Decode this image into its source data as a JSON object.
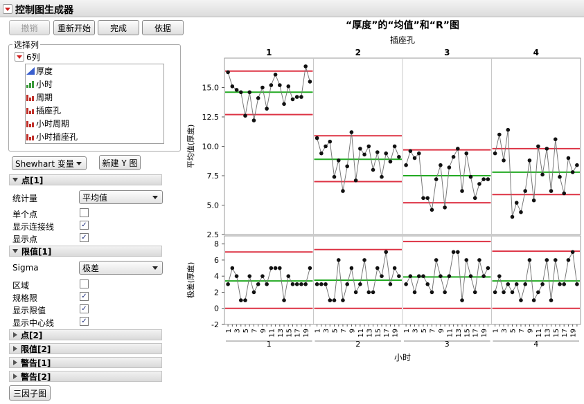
{
  "window": {
    "title": "控制图生成器"
  },
  "buttons": {
    "undo": "撤销",
    "restart": "重新开始",
    "done": "完成",
    "by": "依据",
    "new_y": "新建 Y 图",
    "three_way": "三因子图"
  },
  "select_columns": {
    "group_label": "选择列",
    "count_label": "6列",
    "items": [
      {
        "label": "厚度",
        "icon": "continuous-icon"
      },
      {
        "label": "小时",
        "icon": "ordinal-icon"
      },
      {
        "label": "周期",
        "icon": "nominal-icon"
      },
      {
        "label": "插座孔",
        "icon": "nominal-icon"
      },
      {
        "label": "小时周期",
        "icon": "nominal-icon"
      },
      {
        "label": "小时插座孔",
        "icon": "nominal-icon"
      }
    ]
  },
  "chart_type_combo": "Shewhart 变量",
  "points1": {
    "header": "点[1]",
    "statistic_label": "统计量",
    "statistic_value": "平均值",
    "individual_points": {
      "label": "单个点",
      "checked": false
    },
    "connect_line": {
      "label": "显示连接线",
      "checked": true
    },
    "show_points": {
      "label": "显示点",
      "checked": true
    }
  },
  "limits1": {
    "header": "限值[1]",
    "sigma_label": "Sigma",
    "sigma_value": "极差",
    "zones": {
      "label": "区域",
      "checked": false
    },
    "spec_limits": {
      "label": "规格限",
      "checked": true
    },
    "show_limits": {
      "label": "显示限值",
      "checked": true
    },
    "show_center": {
      "label": "显示中心线",
      "checked": true
    }
  },
  "collapsed_sections": [
    "点[2]",
    "限值[2]",
    "警告[1]",
    "警告[2]"
  ],
  "colors": {
    "center_line": "#22aa22",
    "limit_line": "#dd3344",
    "points": "#111111",
    "connector": "#777777"
  },
  "chart_data": {
    "type": "line",
    "title": "“厚度”的“均值”和“R”图",
    "group_label": "插座孔",
    "groups": [
      "1",
      "2",
      "3",
      "4"
    ],
    "xlabel": "小时",
    "x_ticks": [
      "1",
      "3",
      "5",
      "7",
      "9",
      "11",
      "13",
      "15",
      "17",
      "19"
    ],
    "mean_chart": {
      "ylabel": "平均值(厚度)",
      "ylim": [
        2.5,
        17.5
      ],
      "yticks": [
        "2.5",
        "5.0",
        "7.5",
        "10.0",
        "12.5",
        "15.0"
      ],
      "series": [
        {
          "group": "1",
          "center": 14.6,
          "ucl": 16.4,
          "lcl": 12.7,
          "values": [
            16.3,
            15.1,
            14.8,
            14.6,
            12.6,
            14.6,
            12.2,
            14.1,
            15.0,
            13.2,
            15.2,
            16.1,
            15.2,
            13.6,
            15.1,
            14.0,
            14.2,
            14.2,
            16.8,
            15.5
          ]
        },
        {
          "group": "2",
          "center": 8.9,
          "ucl": 10.9,
          "lcl": 7.0,
          "values": [
            10.7,
            9.4,
            10.0,
            10.4,
            7.4,
            8.8,
            6.2,
            8.3,
            11.2,
            7.1,
            9.8,
            9.3,
            10.0,
            8.0,
            9.5,
            7.4,
            9.4,
            8.7,
            10.0,
            9.1
          ]
        },
        {
          "group": "3",
          "center": 7.5,
          "ucl": 9.7,
          "lcl": 5.2,
          "values": [
            8.4,
            9.6,
            9.0,
            9.4,
            5.6,
            5.6,
            4.6,
            7.2,
            8.4,
            4.8,
            8.2,
            9.1,
            9.8,
            6.2,
            9.4,
            7.4,
            5.6,
            6.8,
            7.2,
            7.2
          ]
        },
        {
          "group": "4",
          "center": 7.8,
          "ucl": 9.8,
          "lcl": 5.9,
          "values": [
            9.4,
            11.0,
            8.8,
            11.4,
            4.0,
            5.2,
            4.4,
            6.2,
            8.8,
            5.4,
            10.0,
            7.6,
            9.8,
            6.2,
            10.6,
            7.4,
            6.0,
            9.0,
            7.8,
            8.4
          ]
        }
      ]
    },
    "range_chart": {
      "ylabel": "极差(厚度)",
      "ylim": [
        -2,
        9
      ],
      "yticks": [
        "-2",
        "0",
        "2",
        "4",
        "6",
        "8"
      ],
      "series": [
        {
          "group": "1",
          "center": 3.4,
          "ucl": 7.0,
          "lcl": 0,
          "values": [
            3,
            5,
            4,
            1,
            1,
            4,
            2,
            3,
            4,
            3,
            5,
            5,
            5,
            1,
            4,
            3,
            3,
            3,
            3,
            5
          ]
        },
        {
          "group": "2",
          "center": 3.5,
          "ucl": 7.3,
          "lcl": 0,
          "values": [
            3,
            3,
            3,
            1,
            1,
            6,
            1,
            3,
            5,
            2,
            3,
            6,
            2,
            2,
            5,
            4,
            7,
            3,
            5,
            4
          ]
        },
        {
          "group": "3",
          "center": 3.9,
          "ucl": 8.3,
          "lcl": 0,
          "values": [
            3,
            4,
            2,
            4,
            4,
            3,
            2,
            6,
            4,
            2,
            4,
            7,
            7,
            1,
            6,
            4,
            2,
            6,
            4,
            5
          ]
        },
        {
          "group": "4",
          "center": 3.4,
          "ucl": 7.1,
          "lcl": 0,
          "values": [
            2,
            4,
            2,
            3,
            2,
            3,
            1,
            3,
            6,
            1,
            2,
            3,
            6,
            1,
            6,
            3,
            3,
            6,
            7,
            3
          ]
        }
      ]
    }
  }
}
